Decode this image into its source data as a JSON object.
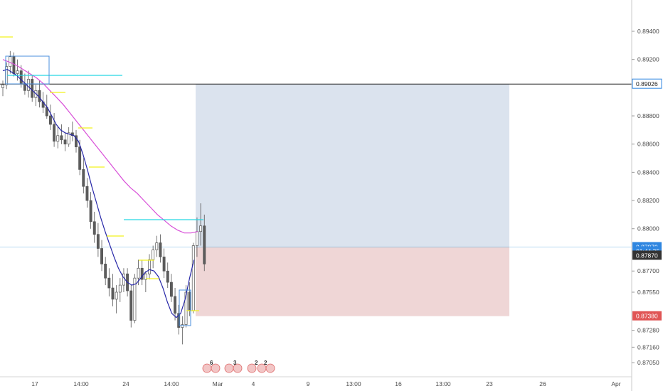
{
  "chart_data": {
    "type": "candlestick",
    "instrument_hint": "forex price chart",
    "y_axis": {
      "range": [
        0.8697,
        0.8954
      ],
      "ticks": [
        {
          "value": 0.894,
          "label": "0.89400"
        },
        {
          "value": 0.892,
          "label": "0.89200"
        },
        {
          "value": 0.888,
          "label": "0.88800"
        },
        {
          "value": 0.886,
          "label": "0.88600"
        },
        {
          "value": 0.884,
          "label": "0.88400"
        },
        {
          "value": 0.882,
          "label": "0.88200"
        },
        {
          "value": 0.88,
          "label": "0.88000"
        },
        {
          "value": 0.877,
          "label": "0.87700"
        },
        {
          "value": 0.8755,
          "label": "0.87550"
        },
        {
          "value": 0.8728,
          "label": "0.87280"
        },
        {
          "value": 0.8716,
          "label": "0.87160"
        },
        {
          "value": 0.8705,
          "label": "0.87050"
        }
      ]
    },
    "x_axis": {
      "ticks": [
        "17",
        "14:00",
        "24",
        "14:00",
        "Mar",
        "4",
        "9",
        "13:00",
        "16",
        "13:00",
        "23",
        "26",
        "Apr"
      ]
    },
    "price_badges": [
      {
        "label": "0.89026",
        "value": 0.89026,
        "style": "outlined-blue"
      },
      {
        "label": "0.87870",
        "value": 0.8787,
        "style": "blue"
      },
      {
        "label": "01:44:35",
        "value": 0.8784,
        "style": "blue"
      },
      {
        "label": "0.87870",
        "value": 0.8781,
        "style": "dark"
      },
      {
        "label": "0.87380",
        "value": 0.8738,
        "style": "red"
      }
    ],
    "horizontal_line": {
      "value": 0.89026
    },
    "current_price_line": {
      "value": 0.8787
    },
    "position_tool": {
      "entry": 0.8787,
      "target": 0.89026,
      "stop": 0.8738
    },
    "candles": [
      [
        0.89,
        0.8905,
        0.8894,
        0.8902
      ],
      [
        0.8902,
        0.8918,
        0.8899,
        0.8915
      ],
      [
        0.8915,
        0.8926,
        0.891,
        0.8922
      ],
      [
        0.8922,
        0.8925,
        0.8908,
        0.891
      ],
      [
        0.891,
        0.892,
        0.8905,
        0.8912
      ],
      [
        0.8912,
        0.8916,
        0.89,
        0.8903
      ],
      [
        0.8903,
        0.891,
        0.8895,
        0.8898
      ],
      [
        0.8898,
        0.8912,
        0.8893,
        0.8906
      ],
      [
        0.8906,
        0.8909,
        0.889,
        0.8893
      ],
      [
        0.8893,
        0.8902,
        0.8887,
        0.8898
      ],
      [
        0.8898,
        0.8905,
        0.8886,
        0.889
      ],
      [
        0.889,
        0.8897,
        0.8882,
        0.8886
      ],
      [
        0.8886,
        0.8895,
        0.8878,
        0.888
      ],
      [
        0.888,
        0.8888,
        0.887,
        0.8874
      ],
      [
        0.8874,
        0.8882,
        0.8858,
        0.8862
      ],
      [
        0.8862,
        0.8872,
        0.8857,
        0.8866
      ],
      [
        0.8866,
        0.8874,
        0.886,
        0.8863
      ],
      [
        0.8863,
        0.8868,
        0.8855,
        0.886
      ],
      [
        0.886,
        0.8872,
        0.8858,
        0.8868
      ],
      [
        0.8868,
        0.8876,
        0.8862,
        0.8866
      ],
      [
        0.8866,
        0.887,
        0.8854,
        0.8858
      ],
      [
        0.8858,
        0.8863,
        0.8838,
        0.8842
      ],
      [
        0.8842,
        0.885,
        0.8825,
        0.883
      ],
      [
        0.883,
        0.8836,
        0.8815,
        0.882
      ],
      [
        0.882,
        0.8826,
        0.88,
        0.8805
      ],
      [
        0.8805,
        0.8812,
        0.879,
        0.8796
      ],
      [
        0.8796,
        0.8804,
        0.878,
        0.8786
      ],
      [
        0.8786,
        0.8792,
        0.877,
        0.8775
      ],
      [
        0.8775,
        0.878,
        0.876,
        0.8765
      ],
      [
        0.8765,
        0.8772,
        0.8752,
        0.8758
      ],
      [
        0.8758,
        0.8768,
        0.8745,
        0.875
      ],
      [
        0.875,
        0.876,
        0.874,
        0.8755
      ],
      [
        0.8755,
        0.8765,
        0.8748,
        0.876
      ],
      [
        0.876,
        0.8772,
        0.8755,
        0.8768
      ],
      [
        0.8768,
        0.8772,
        0.8752,
        0.8756
      ],
      [
        0.8756,
        0.876,
        0.873,
        0.8735
      ],
      [
        0.8735,
        0.8768,
        0.8733,
        0.8765
      ],
      [
        0.8765,
        0.8778,
        0.876,
        0.8772
      ],
      [
        0.8772,
        0.8778,
        0.876,
        0.8764
      ],
      [
        0.8764,
        0.877,
        0.8755,
        0.8768
      ],
      [
        0.8768,
        0.8782,
        0.8764,
        0.8778
      ],
      [
        0.8778,
        0.8788,
        0.8772,
        0.8785
      ],
      [
        0.8785,
        0.8795,
        0.878,
        0.879
      ],
      [
        0.879,
        0.8796,
        0.8776,
        0.878
      ],
      [
        0.878,
        0.8786,
        0.8765,
        0.877
      ],
      [
        0.877,
        0.8776,
        0.8758,
        0.8762
      ],
      [
        0.8762,
        0.8768,
        0.8748,
        0.8752
      ],
      [
        0.8752,
        0.8758,
        0.8735,
        0.874
      ],
      [
        0.874,
        0.8746,
        0.8725,
        0.873
      ],
      [
        0.873,
        0.8738,
        0.8718,
        0.8732
      ],
      [
        0.8732,
        0.876,
        0.873,
        0.8755
      ],
      [
        0.8755,
        0.8762,
        0.8738,
        0.8742
      ],
      [
        0.8742,
        0.879,
        0.874,
        0.8788
      ],
      [
        0.8788,
        0.8808,
        0.878,
        0.8798
      ],
      [
        0.8798,
        0.8818,
        0.8788,
        0.8802
      ],
      [
        0.8802,
        0.881,
        0.877,
        0.8775
      ]
    ],
    "ema_fast": [
      0.8912,
      0.8913,
      0.8911,
      0.8909,
      0.8906,
      0.8903,
      0.89,
      0.8897,
      0.8894,
      0.889,
      0.8886,
      0.888,
      0.8874,
      0.887,
      0.8868,
      0.8867,
      0.8866,
      0.8862,
      0.8853,
      0.8842,
      0.883,
      0.8819,
      0.8808,
      0.8798,
      0.8789,
      0.878,
      0.8772,
      0.8766,
      0.8762,
      0.876,
      0.8761,
      0.8765,
      0.8769,
      0.8771,
      0.877,
      0.8766,
      0.8758,
      0.8748,
      0.874,
      0.8737,
      0.874,
      0.875,
      0.8765,
      0.8778
    ],
    "ema_slow": [
      0.892,
      0.8918,
      0.8916,
      0.8913,
      0.891,
      0.8907,
      0.8903,
      0.8898,
      0.8893,
      0.8888,
      0.8882,
      0.8876,
      0.887,
      0.8864,
      0.8858,
      0.8852,
      0.8846,
      0.884,
      0.8834,
      0.8829,
      0.8825,
      0.882,
      0.8815,
      0.881,
      0.8806,
      0.8802,
      0.8799,
      0.8797,
      0.8797,
      0.8798
    ],
    "event_markers": [
      {
        "label": "6"
      },
      {
        "label": "3"
      },
      {
        "label": "2"
      },
      {
        "label": "2"
      }
    ]
  },
  "colors": {
    "up_candle": "#ffffff",
    "down_candle": "#5c5c5c",
    "ema_fast": "#2727a8",
    "ema_slow": "#d84fd8",
    "target_zone": "#dbe3ee",
    "stop_zone": "#efd6d6",
    "level_cyan": "#26d7e3",
    "level_yellow": "#f2f21c",
    "box_blue": "#4a8fdc",
    "badge_blue": "#2f86e0",
    "badge_dark": "#333333",
    "badge_red": "#e05555"
  }
}
